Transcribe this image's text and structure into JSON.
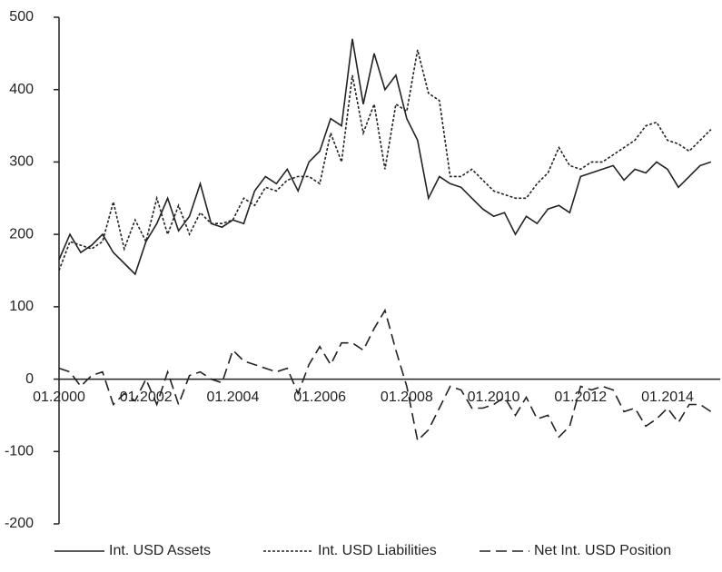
{
  "chart_data": {
    "type": "line",
    "categories": [
      "01.2000",
      null,
      null,
      null,
      null,
      null,
      null,
      null,
      "01.2002",
      null,
      null,
      null,
      null,
      null,
      null,
      null,
      "01.2004",
      null,
      null,
      null,
      null,
      null,
      null,
      null,
      "01.2006",
      null,
      null,
      null,
      null,
      null,
      null,
      null,
      "01.2008",
      null,
      null,
      null,
      null,
      null,
      null,
      null,
      "01.2010",
      null,
      null,
      null,
      null,
      null,
      null,
      null,
      "01.2012",
      null,
      null,
      null,
      null,
      null,
      null,
      null,
      "01.2014",
      null,
      null,
      null,
      null
    ],
    "series": [
      {
        "name": "Int. USD Assets",
        "color": "#222222",
        "dash": "solid",
        "values": [
          165,
          200,
          175,
          185,
          200,
          175,
          160,
          145,
          190,
          215,
          250,
          205,
          225,
          270,
          215,
          210,
          220,
          215,
          260,
          280,
          270,
          290,
          260,
          300,
          315,
          360,
          350,
          470,
          380,
          450,
          400,
          420,
          360,
          330,
          250,
          280,
          270,
          265,
          250,
          235,
          225,
          230,
          200,
          225,
          215,
          235,
          240,
          230,
          280,
          285,
          290,
          295,
          275,
          290,
          285,
          300,
          290,
          265,
          280,
          295,
          300
        ]
      },
      {
        "name": "Int. USD Liabilities",
        "color": "#222222",
        "dash": "dotted",
        "values": [
          150,
          190,
          185,
          180,
          190,
          245,
          180,
          220,
          190,
          250,
          200,
          240,
          200,
          230,
          215,
          215,
          220,
          250,
          240,
          265,
          260,
          275,
          280,
          280,
          270,
          340,
          300,
          420,
          340,
          380,
          290,
          380,
          370,
          455,
          395,
          385,
          280,
          280,
          290,
          275,
          260,
          255,
          250,
          250,
          270,
          285,
          320,
          295,
          290,
          300,
          300,
          310,
          320,
          330,
          350,
          355,
          330,
          325,
          315,
          330,
          345
        ]
      },
      {
        "name": "Net Int. USD Position",
        "color": "#222222",
        "dash": "dashed",
        "values": [
          15,
          10,
          -10,
          5,
          10,
          -35,
          -20,
          -30,
          0,
          -35,
          10,
          -35,
          5,
          10,
          0,
          -5,
          40,
          25,
          20,
          15,
          10,
          15,
          -20,
          20,
          45,
          20,
          50,
          50,
          40,
          70,
          95,
          40,
          -10,
          -85,
          -70,
          -40,
          -10,
          -15,
          -40,
          -40,
          -35,
          -25,
          -50,
          -25,
          -55,
          -50,
          -80,
          -65,
          -10,
          -15,
          -10,
          -15,
          -45,
          -40,
          -65,
          -55,
          -40,
          -60,
          -35,
          -35,
          -45
        ]
      }
    ],
    "ylim": [
      -200,
      500
    ],
    "yticks": [
      -200,
      -100,
      0,
      100,
      200,
      300,
      400,
      500
    ],
    "grid": false,
    "legend": "bottom"
  }
}
